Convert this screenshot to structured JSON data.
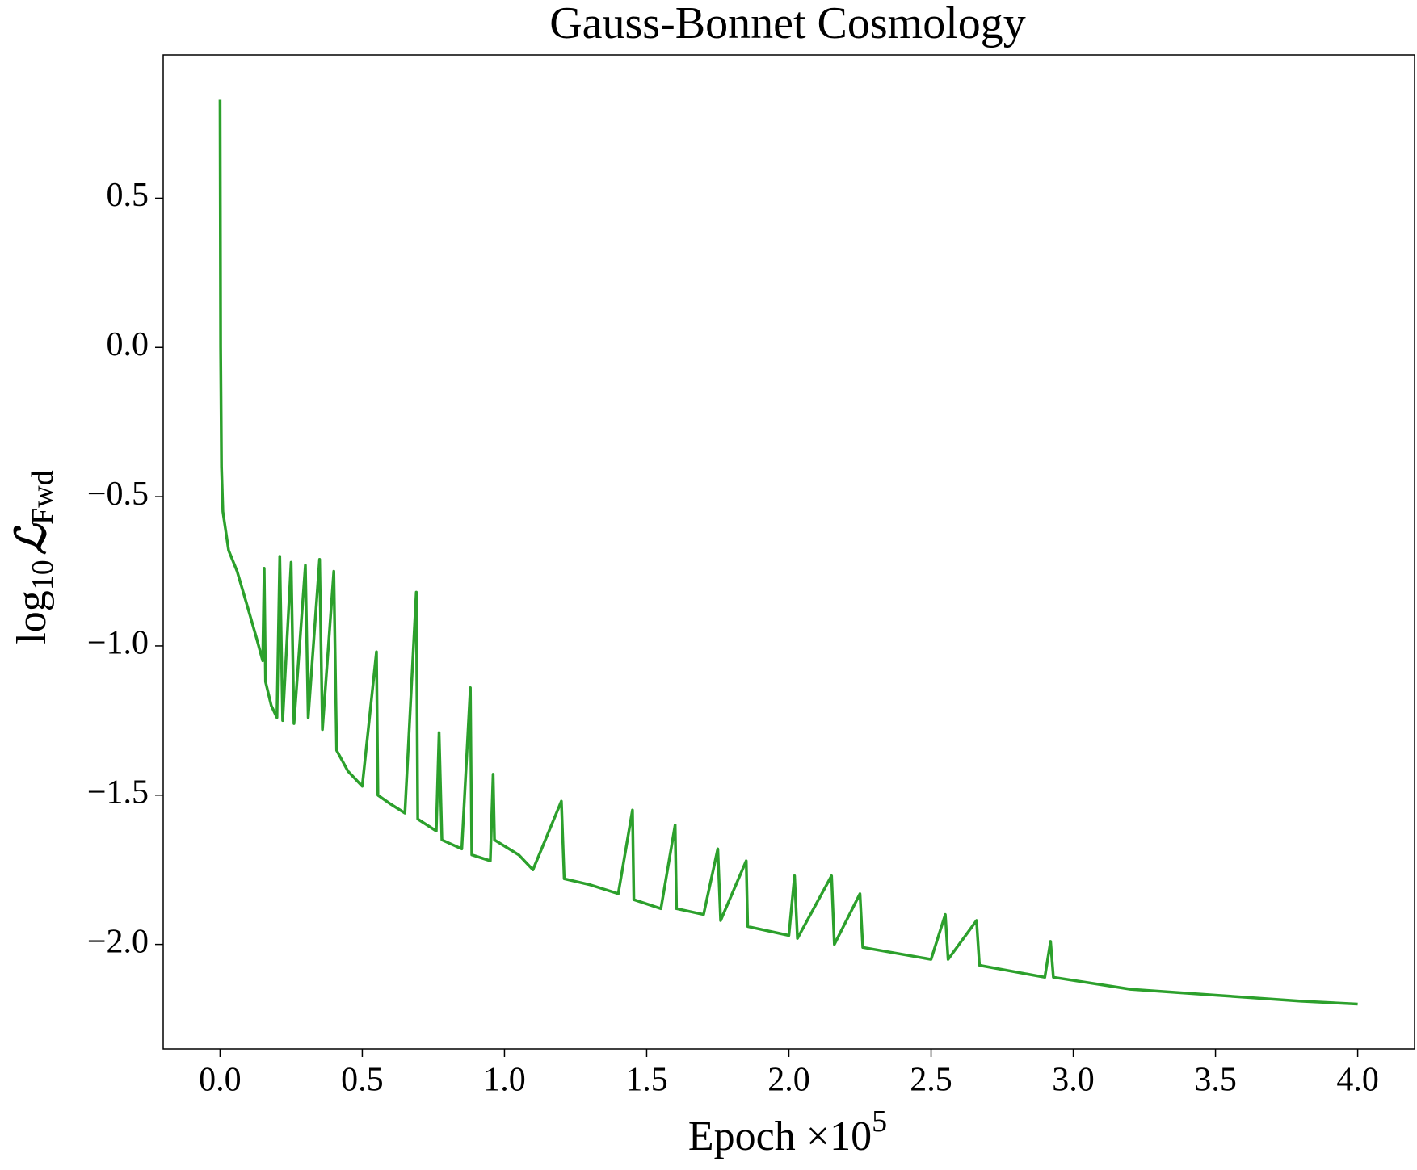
{
  "chart_data": {
    "type": "line",
    "title": "Gauss-Bonnet Cosmology",
    "x_label": {
      "text": "Epoch ×10",
      "sup": "5"
    },
    "y_label": {
      "text": "log",
      "sub": "10",
      "symbol": "ℒ",
      "symbol_sub": "Fwd"
    },
    "x": [
      0.0,
      0.002,
      0.005,
      0.01,
      0.03,
      0.06,
      0.1,
      0.13,
      0.15,
      0.155,
      0.16,
      0.18,
      0.2,
      0.21,
      0.22,
      0.25,
      0.26,
      0.3,
      0.31,
      0.35,
      0.36,
      0.4,
      0.41,
      0.45,
      0.5,
      0.55,
      0.555,
      0.6,
      0.65,
      0.69,
      0.695,
      0.76,
      0.77,
      0.78,
      0.85,
      0.88,
      0.885,
      0.95,
      0.96,
      0.965,
      1.05,
      1.1,
      1.2,
      1.21,
      1.3,
      1.4,
      1.45,
      1.455,
      1.55,
      1.6,
      1.605,
      1.7,
      1.75,
      1.76,
      1.85,
      1.855,
      2.0,
      2.02,
      2.03,
      2.15,
      2.16,
      2.25,
      2.26,
      2.5,
      2.55,
      2.56,
      2.66,
      2.67,
      2.9,
      2.92,
      2.93,
      3.2,
      3.5,
      3.8,
      4.0
    ],
    "series": [
      {
        "name": "log10 L_Fwd",
        "color": "#2ca02c",
        "values": [
          0.83,
          0.0,
          -0.4,
          -0.55,
          -0.68,
          -0.75,
          -0.88,
          -0.98,
          -1.05,
          -0.74,
          -1.12,
          -1.2,
          -1.24,
          -0.7,
          -1.25,
          -0.72,
          -1.26,
          -0.73,
          -1.24,
          -0.71,
          -1.28,
          -0.75,
          -1.35,
          -1.42,
          -1.47,
          -1.02,
          -1.5,
          -1.53,
          -1.56,
          -0.82,
          -1.58,
          -1.62,
          -1.29,
          -1.65,
          -1.68,
          -1.14,
          -1.7,
          -1.72,
          -1.43,
          -1.65,
          -1.7,
          -1.75,
          -1.52,
          -1.78,
          -1.8,
          -1.83,
          -1.55,
          -1.85,
          -1.88,
          -1.6,
          -1.88,
          -1.9,
          -1.68,
          -1.92,
          -1.72,
          -1.94,
          -1.97,
          -1.77,
          -1.98,
          -1.77,
          -2.0,
          -1.83,
          -2.01,
          -2.05,
          -1.9,
          -2.05,
          -1.92,
          -2.07,
          -2.11,
          -1.99,
          -2.11,
          -2.15,
          -2.17,
          -2.19,
          -2.2
        ]
      }
    ],
    "xlim": [
      -0.2,
      4.2
    ],
    "ylim": [
      -2.35,
      0.98
    ],
    "xticks": [
      {
        "value": 0,
        "label": "0.0"
      },
      0.5,
      {
        "value": 1,
        "label": "1.0"
      },
      1.5,
      {
        "value": 2,
        "label": "2.0"
      },
      2.5,
      {
        "value": 3,
        "label": "3.0"
      },
      3.5,
      {
        "value": 4,
        "label": "4.0"
      }
    ],
    "yticks": [
      {
        "value": -2,
        "label": "−2.0"
      },
      {
        "value": -1.5,
        "label": "−1.5"
      },
      {
        "value": -1,
        "label": "−1.0"
      },
      {
        "value": -0.5,
        "label": "−0.5"
      },
      {
        "value": 0,
        "label": "0.0"
      },
      0.5
    ],
    "grid": false
  }
}
